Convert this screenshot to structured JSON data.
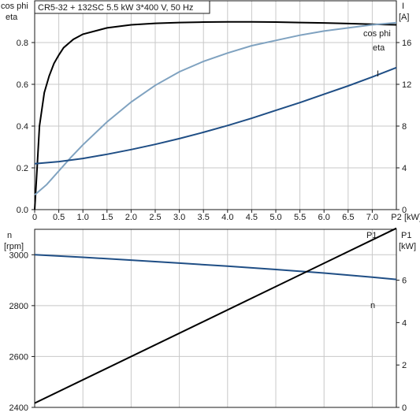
{
  "chart_data": [
    {
      "type": "line",
      "title": "CR5-32 + 132SC   5.5 kW   3*400 V, 50 Hz",
      "left_axis_label": [
        "cos phi",
        "eta"
      ],
      "right_axis_label": [
        "I",
        "[A]"
      ],
      "x_axis_label": [
        "P2",
        "[kW]"
      ],
      "xlim": [
        0,
        7.5
      ],
      "x_ticks": [
        "0",
        "0.5",
        "1.0",
        "1.5",
        "2.0",
        "2.5",
        "3.0",
        "3.5",
        "4.0",
        "4.5",
        "5.0",
        "5.5",
        "6.0",
        "6.5",
        "7.0"
      ],
      "ylim_left": [
        0,
        1.0
      ],
      "left_ticks": [
        0.0,
        0.2,
        0.4,
        0.6,
        0.8
      ],
      "left_tick_labels": [
        "0.0",
        "0.2",
        "0.4",
        "0.6",
        "0.8"
      ],
      "ylim_right": [
        0,
        20
      ],
      "right_ticks": [
        0,
        4,
        8,
        12,
        16
      ],
      "right_tick_labels": [
        "0",
        "4",
        "8",
        "12",
        "16"
      ],
      "grid": true,
      "series": [
        {
          "name": "eta",
          "axis": "left",
          "color": "#000000",
          "x": [
            0.0,
            0.05,
            0.1,
            0.2,
            0.3,
            0.4,
            0.5,
            0.6,
            0.8,
            1.0,
            1.5,
            2.0,
            2.5,
            3.0,
            3.5,
            4.0,
            4.5,
            5.0,
            5.5,
            6.0,
            6.5,
            7.0,
            7.5
          ],
          "values": [
            0.0,
            0.2,
            0.4,
            0.56,
            0.64,
            0.7,
            0.74,
            0.775,
            0.815,
            0.84,
            0.87,
            0.885,
            0.892,
            0.896,
            0.898,
            0.899,
            0.899,
            0.898,
            0.896,
            0.894,
            0.891,
            0.888,
            0.885
          ]
        },
        {
          "name": "cos phi",
          "axis": "left",
          "color": "#7fa2c0",
          "x": [
            0.0,
            0.25,
            0.5,
            0.75,
            1.0,
            1.5,
            2.0,
            2.5,
            3.0,
            3.5,
            4.0,
            4.5,
            5.0,
            5.5,
            6.0,
            6.5,
            7.0,
            7.5
          ],
          "values": [
            0.07,
            0.12,
            0.185,
            0.25,
            0.31,
            0.42,
            0.515,
            0.595,
            0.66,
            0.71,
            0.75,
            0.785,
            0.81,
            0.835,
            0.855,
            0.87,
            0.885,
            0.895
          ]
        },
        {
          "name": "I",
          "axis": "right",
          "color": "#1f4e85",
          "x": [
            0.0,
            0.5,
            1.0,
            1.5,
            2.0,
            2.5,
            3.0,
            3.5,
            4.0,
            4.5,
            5.0,
            5.5,
            6.0,
            6.5,
            7.0,
            7.5
          ],
          "values": [
            4.4,
            4.6,
            4.9,
            5.3,
            5.75,
            6.25,
            6.8,
            7.4,
            8.05,
            8.75,
            9.5,
            10.25,
            11.05,
            11.85,
            12.7,
            13.6
          ]
        }
      ]
    },
    {
      "type": "line",
      "left_axis_label": [
        "n",
        "[rpm]"
      ],
      "right_axis_label": [
        "P1",
        "[kW]"
      ],
      "xlim": [
        0,
        7.5
      ],
      "ylim_left": [
        2400,
        3100
      ],
      "left_ticks": [
        2400,
        2600,
        2800,
        3000
      ],
      "left_tick_labels": [
        "2400",
        "2600",
        "2800",
        "3000"
      ],
      "ylim_right": [
        0,
        8.4
      ],
      "right_ticks": [
        0,
        2,
        4,
        6
      ],
      "right_tick_labels": [
        "0",
        "2",
        "4",
        "6"
      ],
      "grid": true,
      "series": [
        {
          "name": "n",
          "axis": "left",
          "color": "#1f4e85",
          "x": [
            0.0,
            1.0,
            2.0,
            3.0,
            4.0,
            5.0,
            6.0,
            7.0,
            7.5
          ],
          "values": [
            3000,
            2990,
            2979,
            2967,
            2955,
            2942,
            2928,
            2912,
            2903
          ]
        },
        {
          "name": "P1",
          "axis": "right",
          "color": "#000000",
          "x": [
            0.0,
            7.5
          ],
          "values": [
            0.2,
            8.45
          ]
        }
      ]
    }
  ]
}
